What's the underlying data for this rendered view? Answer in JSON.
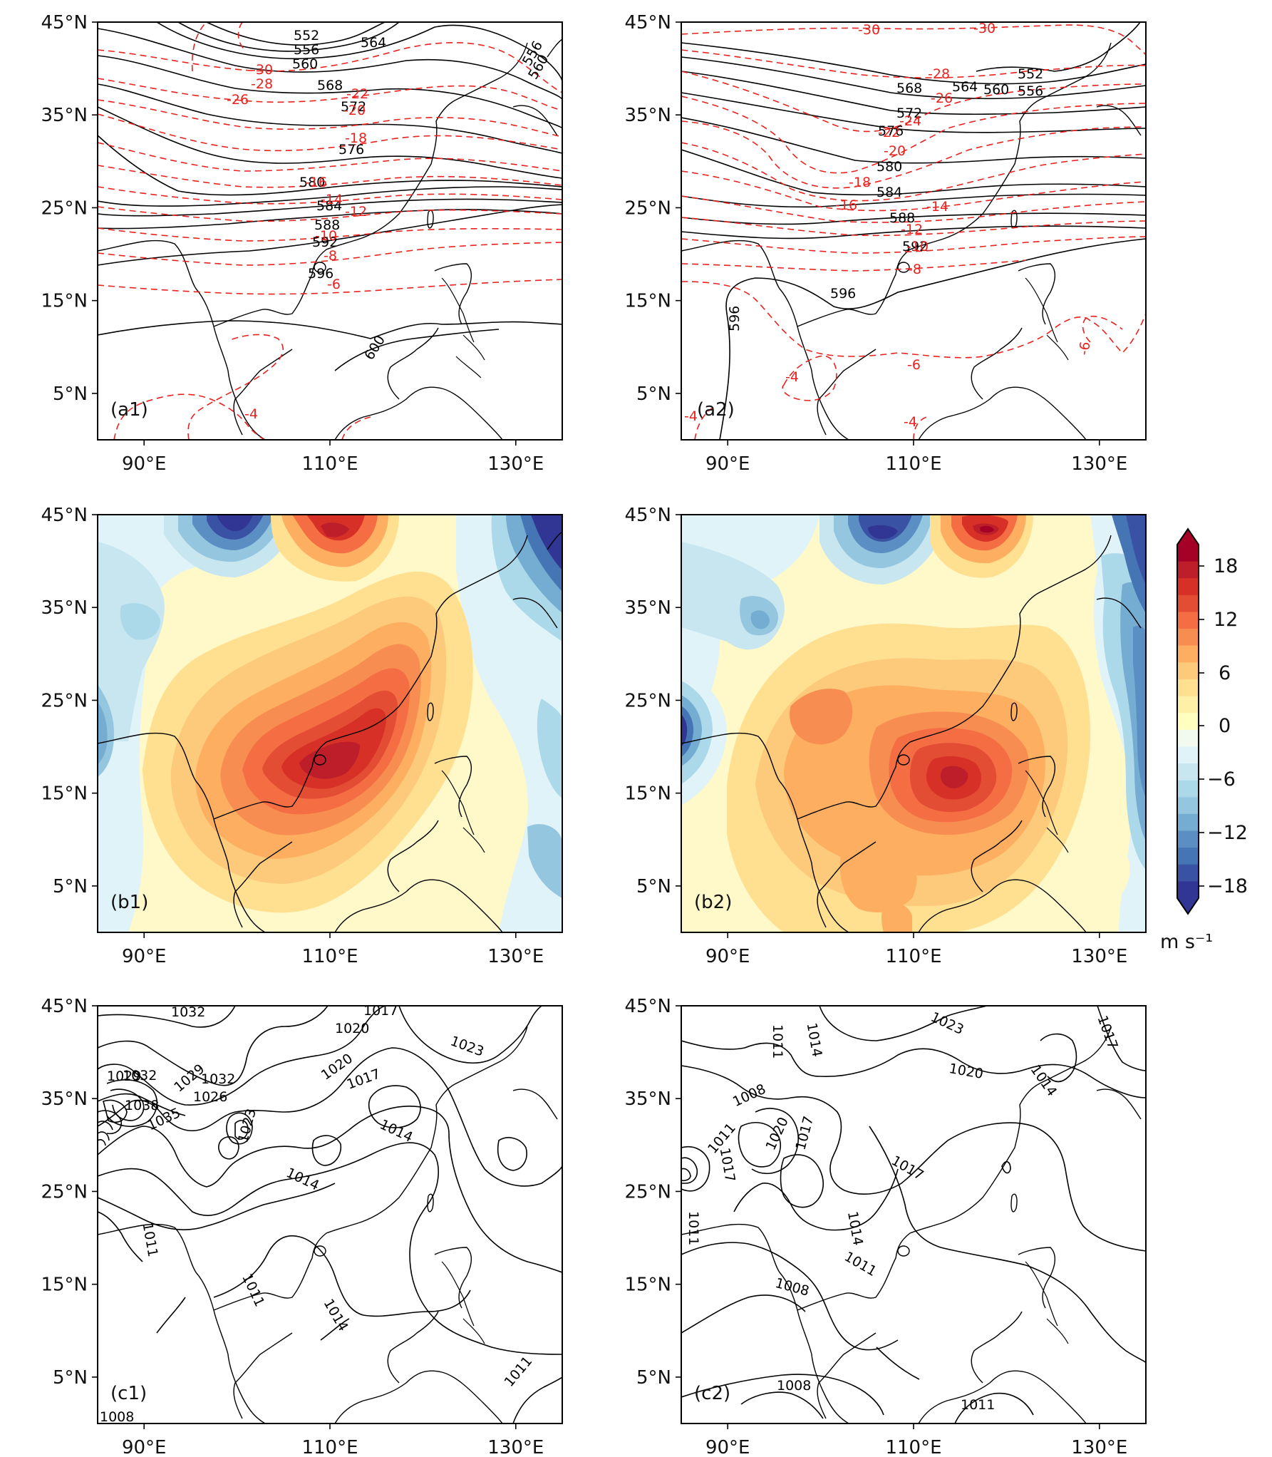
{
  "figure": {
    "lat_ticks": [
      "45°N",
      "35°N",
      "25°N",
      "15°N",
      "5°N"
    ],
    "lon_ticks": [
      "90°E",
      "110°E",
      "130°E"
    ],
    "map_extent": {
      "lon": [
        85,
        135
      ],
      "lat": [
        0,
        45
      ]
    }
  },
  "panels": [
    {
      "id": "a1",
      "label": "(a1)",
      "kind": "geopotential_temperature",
      "height_labels": [
        "552",
        "556",
        "560",
        "564",
        "568",
        "572",
        "576",
        "580",
        "584",
        "588",
        "592",
        "596",
        "600",
        "556",
        "560"
      ],
      "temp_labels": [
        "-30",
        "-28",
        "-26",
        "-22",
        "-20",
        "-18",
        "-16",
        "-14",
        "-12",
        "-10",
        "-8",
        "-6",
        "-4"
      ]
    },
    {
      "id": "a2",
      "label": "(a2)",
      "kind": "geopotential_temperature",
      "height_labels": [
        "552",
        "556",
        "560",
        "564",
        "568",
        "572",
        "576",
        "580",
        "584",
        "588",
        "592",
        "596",
        "596"
      ],
      "temp_labels": [
        "-30",
        "-30",
        "-28",
        "-26",
        "-24",
        "-22",
        "-20",
        "-18",
        "-16",
        "-14",
        "-12",
        "-10",
        "-8",
        "-6",
        "-6",
        "-4",
        "-4",
        "-4"
      ]
    },
    {
      "id": "b1",
      "label": "(b1)",
      "kind": "wind_shading"
    },
    {
      "id": "b2",
      "label": "(b2)",
      "kind": "wind_shading"
    },
    {
      "id": "c1",
      "label": "(c1)",
      "kind": "sea_level_pressure",
      "slp_labels": [
        "1032",
        "1020",
        "1017",
        "1023",
        "1029",
        "1032",
        "1029",
        "1032",
        "1026",
        "1038",
        "1035",
        "1023",
        "1020",
        "1017",
        "1014",
        "1014",
        "1011",
        "1011",
        "1014",
        "1011",
        "1008"
      ]
    },
    {
      "id": "c2",
      "label": "(c2)",
      "kind": "sea_level_pressure",
      "slp_labels": [
        "1023",
        "1017",
        "1011",
        "1014",
        "1020",
        "1008",
        "1011",
        "1017",
        "1020",
        "1017",
        "1014",
        "1017",
        "1014",
        "1011",
        "1011",
        "1008",
        "1008",
        "1011"
      ]
    }
  ],
  "colorbar": {
    "ticks": [
      "18",
      "12",
      "6",
      "0",
      "−6",
      "−12",
      "−18"
    ],
    "unit": "m s⁻¹",
    "range": [
      -21,
      21
    ],
    "colors": [
      "#313695",
      "#3a52a3",
      "#4575b4",
      "#5b8fc3",
      "#74add1",
      "#94c6df",
      "#abd9e9",
      "#c8e6f0",
      "#e0f3f8",
      "#f2f9ef",
      "#ffffbf",
      "#fff0a8",
      "#fee090",
      "#fdc97a",
      "#fdae61",
      "#f88d52",
      "#f46d43",
      "#e34d34",
      "#d73027",
      "#bd1e2a",
      "#a50026"
    ]
  }
}
